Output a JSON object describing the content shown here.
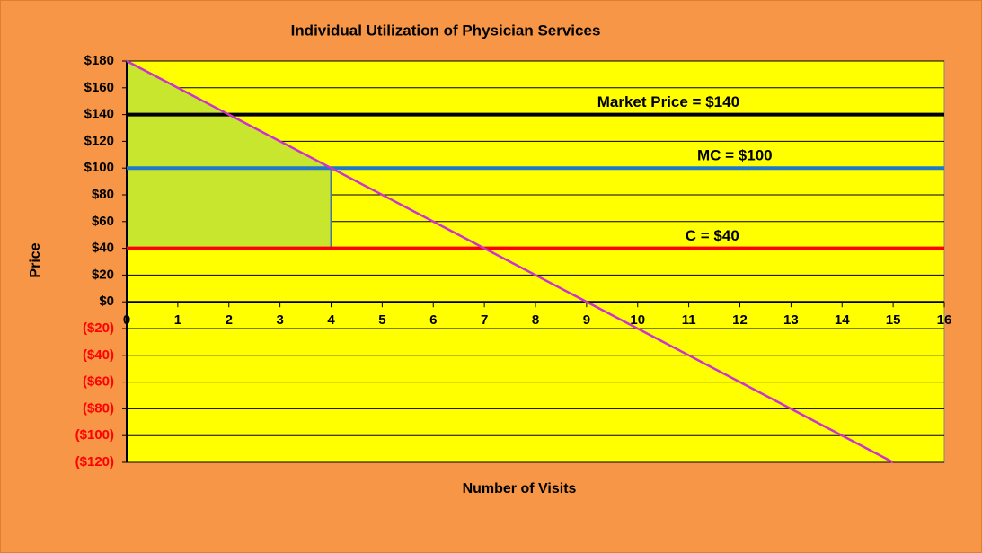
{
  "chart_data": {
    "type": "line",
    "title": "Individual  Utilization  of Physician  Services",
    "x_label": "Number of Visits",
    "y_label": "Price",
    "xlim": [
      0,
      16
    ],
    "xticks": [
      0,
      1,
      2,
      3,
      4,
      5,
      6,
      7,
      8,
      9,
      10,
      11,
      12,
      13,
      14,
      15,
      16
    ],
    "ylim": [
      -120,
      180
    ],
    "yticks": [
      {
        "value": -120,
        "label": "($120)"
      },
      {
        "value": -100,
        "label": "($100)"
      },
      {
        "value": -80,
        "label": "($80)"
      },
      {
        "value": -60,
        "label": "($60)"
      },
      {
        "value": -40,
        "label": "($40)"
      },
      {
        "value": -20,
        "label": "($20)"
      },
      {
        "value": 0,
        "label": "$0"
      },
      {
        "value": 20,
        "label": "$20"
      },
      {
        "value": 40,
        "label": "$40"
      },
      {
        "value": 60,
        "label": "$60"
      },
      {
        "value": 80,
        "label": "$80"
      },
      {
        "value": 100,
        "label": "$100"
      },
      {
        "value": 120,
        "label": "$120"
      },
      {
        "value": 140,
        "label": "$140"
      },
      {
        "value": 160,
        "label": "$160"
      },
      {
        "value": 180,
        "label": "$180"
      }
    ],
    "negative_tick_color": "#ff0000",
    "grid": true,
    "shaded_area": {
      "x": [
        0,
        4,
        4,
        0
      ],
      "y": [
        180,
        100,
        40,
        40
      ],
      "color": "#c8e62e"
    },
    "series": [
      {
        "name": "Market Price = $140",
        "color": "#000000",
        "x": [
          0,
          16
        ],
        "values": [
          140,
          140
        ]
      },
      {
        "name": "MC = $100",
        "color": "#1f78c8",
        "x": [
          0,
          16
        ],
        "values": [
          100,
          100
        ]
      },
      {
        "name": "C = $40",
        "color": "#ff0000",
        "x": [
          0,
          16
        ],
        "values": [
          40,
          40
        ]
      },
      {
        "color": "#cc33cc",
        "x": [
          0,
          15
        ],
        "values": [
          180,
          -120
        ]
      }
    ]
  }
}
